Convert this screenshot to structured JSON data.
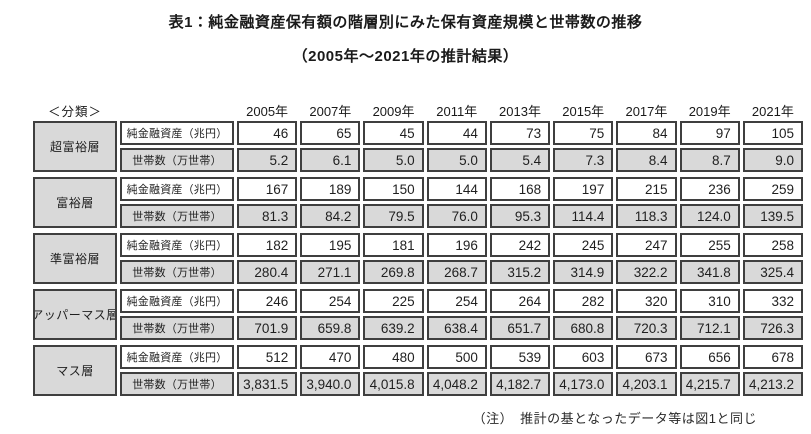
{
  "title": "表1：純金融資産保有額の階層別にみた保有資産規模と世帯数の推移",
  "subtitle": "（2005年～2021年の推計結果）",
  "note": "（注）　推計の基となったデータ等は図1と同じ",
  "table": {
    "classification_label": "＜分類＞",
    "years": [
      "2005年",
      "2007年",
      "2009年",
      "2011年",
      "2013年",
      "2015年",
      "2017年",
      "2019年",
      "2021年"
    ],
    "measure_labels": {
      "assets": "純金融資産（兆円）",
      "households": "世帯数（万世帯）"
    },
    "tiers": [
      {
        "name": "超富裕層",
        "assets": [
          "46",
          "65",
          "45",
          "44",
          "73",
          "75",
          "84",
          "97",
          "105"
        ],
        "households": [
          "5.2",
          "6.1",
          "5.0",
          "5.0",
          "5.4",
          "7.3",
          "8.4",
          "8.7",
          "9.0"
        ]
      },
      {
        "name": "富裕層",
        "assets": [
          "167",
          "189",
          "150",
          "144",
          "168",
          "197",
          "215",
          "236",
          "259"
        ],
        "households": [
          "81.3",
          "84.2",
          "79.5",
          "76.0",
          "95.3",
          "114.4",
          "118.3",
          "124.0",
          "139.5"
        ]
      },
      {
        "name": "準富裕層",
        "assets": [
          "182",
          "195",
          "181",
          "196",
          "242",
          "245",
          "247",
          "255",
          "258"
        ],
        "households": [
          "280.4",
          "271.1",
          "269.8",
          "268.7",
          "315.2",
          "314.9",
          "322.2",
          "341.8",
          "325.4"
        ]
      },
      {
        "name": "アッパーマス層",
        "assets": [
          "246",
          "254",
          "225",
          "254",
          "264",
          "282",
          "320",
          "310",
          "332"
        ],
        "households": [
          "701.9",
          "659.8",
          "639.2",
          "638.4",
          "651.7",
          "680.8",
          "720.3",
          "712.1",
          "726.3"
        ]
      },
      {
        "name": "マス層",
        "assets": [
          "512",
          "470",
          "480",
          "500",
          "539",
          "603",
          "673",
          "656",
          "678"
        ],
        "households": [
          "3,831.5",
          "3,940.0",
          "4,015.8",
          "4,048.2",
          "4,182.7",
          "4,173.0",
          "4,203.1",
          "4,215.7",
          "4,213.2"
        ]
      }
    ]
  },
  "chart_data": {
    "type": "table",
    "title": "表1：純金融資産保有額の階層別にみた保有資産規模と世帯数の推移",
    "subtitle": "（2005年～2021年の推計結果）",
    "categories": [
      "2005年",
      "2007年",
      "2009年",
      "2011年",
      "2013年",
      "2015年",
      "2017年",
      "2019年",
      "2021年"
    ],
    "series": [
      {
        "name": "超富裕層 純金融資産（兆円）",
        "values": [
          46,
          65,
          45,
          44,
          73,
          75,
          84,
          97,
          105
        ]
      },
      {
        "name": "超富裕層 世帯数（万世帯）",
        "values": [
          5.2,
          6.1,
          5.0,
          5.0,
          5.4,
          7.3,
          8.4,
          8.7,
          9.0
        ]
      },
      {
        "name": "富裕層 純金融資産（兆円）",
        "values": [
          167,
          189,
          150,
          144,
          168,
          197,
          215,
          236,
          259
        ]
      },
      {
        "name": "富裕層 世帯数（万世帯）",
        "values": [
          81.3,
          84.2,
          79.5,
          76.0,
          95.3,
          114.4,
          118.3,
          124.0,
          139.5
        ]
      },
      {
        "name": "準富裕層 純金融資産（兆円）",
        "values": [
          182,
          195,
          181,
          196,
          242,
          245,
          247,
          255,
          258
        ]
      },
      {
        "name": "準富裕層 世帯数（万世帯）",
        "values": [
          280.4,
          271.1,
          269.8,
          268.7,
          315.2,
          314.9,
          322.2,
          341.8,
          325.4
        ]
      },
      {
        "name": "アッパーマス層 純金融資産（兆円）",
        "values": [
          246,
          254,
          225,
          254,
          264,
          282,
          320,
          310,
          332
        ]
      },
      {
        "name": "アッパーマス層 世帯数（万世帯）",
        "values": [
          701.9,
          659.8,
          639.2,
          638.4,
          651.7,
          680.8,
          720.3,
          712.1,
          726.3
        ]
      },
      {
        "name": "マス層 純金融資産（兆円）",
        "values": [
          512,
          470,
          480,
          500,
          539,
          603,
          673,
          656,
          678
        ]
      },
      {
        "name": "マス層 世帯数（万世帯）",
        "values": [
          3831.5,
          3940.0,
          4015.8,
          4048.2,
          4182.7,
          4173.0,
          4203.1,
          4215.7,
          4213.2
        ]
      }
    ],
    "note": "（注）　推計の基となったデータ等は図1と同じ",
    "colors": {
      "cell_border": "#3f3f3f",
      "shaded_cell_bg": "#d9d9d9",
      "plain_cell_bg": "#ffffff"
    }
  }
}
